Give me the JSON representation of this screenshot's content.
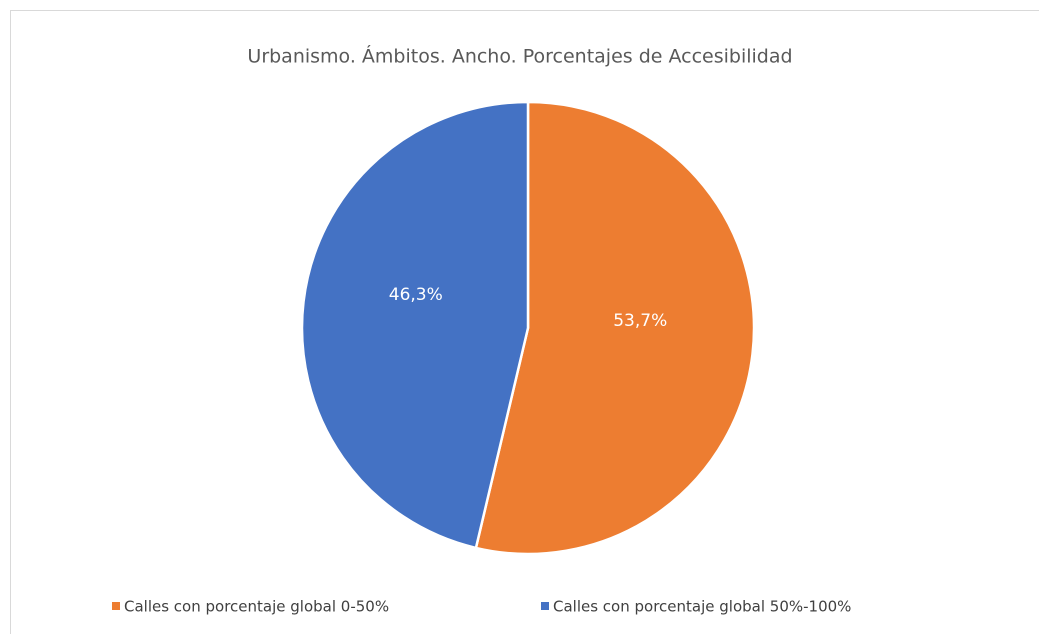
{
  "chart_data": {
    "type": "pie",
    "title": "Urbanismo. Ámbitos. Ancho. Porcentajes de Accesibilidad",
    "categories": [
      "Calles con porcentaje global 0-50%",
      "Calles con porcentaje global 50%-100%"
    ],
    "values": [
      53.7,
      46.3
    ],
    "value_labels": [
      "53,7%",
      "46,3%"
    ],
    "colors": [
      "#ed7d31",
      "#4472c4"
    ]
  }
}
